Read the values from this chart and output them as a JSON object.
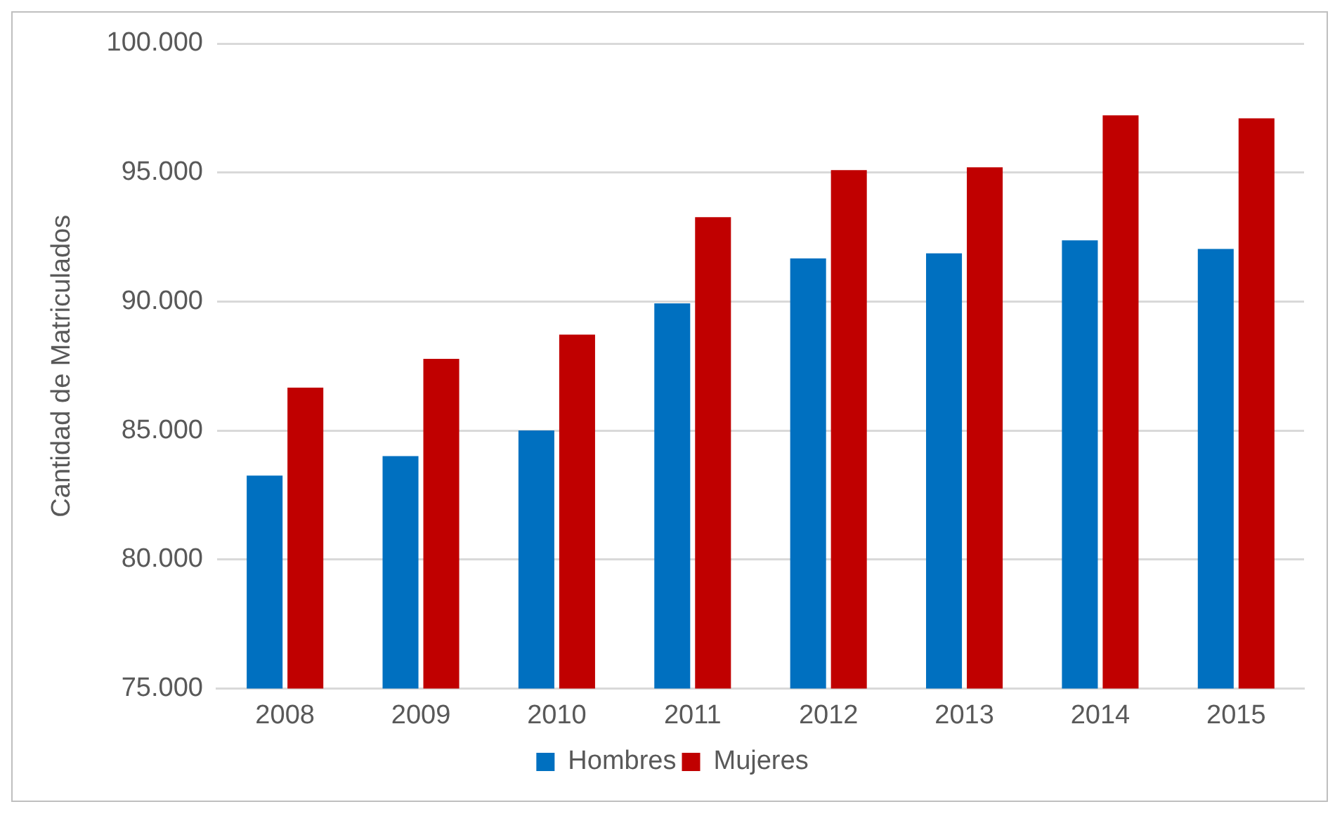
{
  "chart_data": {
    "type": "bar",
    "ylabel": "Cantidad de Matriculados",
    "categories": [
      "2008",
      "2009",
      "2010",
      "2011",
      "2012",
      "2013",
      "2014",
      "2015"
    ],
    "series": [
      {
        "name": "Hombres",
        "color": "#0070c0",
        "values": [
          83250,
          84010,
          85000,
          89930,
          91670,
          91870,
          92370,
          92040
        ]
      },
      {
        "name": "Mujeres",
        "color": "#c00000",
        "values": [
          86660,
          87780,
          88720,
          93270,
          95090,
          95200,
          97220,
          97100
        ]
      }
    ],
    "ylim": [
      75000,
      100000
    ],
    "yticks": [
      {
        "value": 75000,
        "label": "75.000"
      },
      {
        "value": 80000,
        "label": "80.000"
      },
      {
        "value": 85000,
        "label": "85.000"
      },
      {
        "value": 90000,
        "label": "90.000"
      },
      {
        "value": 95000,
        "label": "95.000"
      },
      {
        "value": 100000,
        "label": "100.000"
      }
    ],
    "grid": "y",
    "legend": "bottom"
  }
}
